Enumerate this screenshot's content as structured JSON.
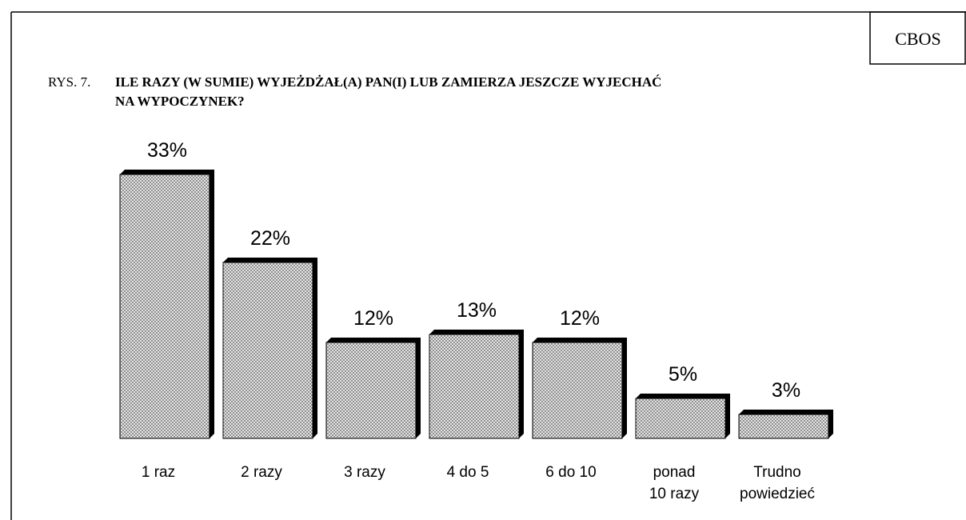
{
  "chart_data": {
    "type": "bar",
    "source": "CBOS",
    "figure_label": "RYS. 7.",
    "title": "ILE RAZY (W SUMIE) WYJEŻDŻAŁ(A) PAN(I) LUB ZAMIERZA JESZCZE WYJECHAĆ\nNA  WYPOCZYNEK?",
    "categories": [
      "1 raz",
      "2 razy",
      "3 razy",
      "4 do 5",
      "6 do 10",
      "ponad\n10 razy",
      "Trudno\npowiedzieć"
    ],
    "values": [
      33,
      22,
      12,
      13,
      12,
      5,
      3
    ],
    "value_labels": [
      "33%",
      "22%",
      "12%",
      "13%",
      "12%",
      "5%",
      "3%"
    ],
    "color": "#c8c8c8"
  }
}
